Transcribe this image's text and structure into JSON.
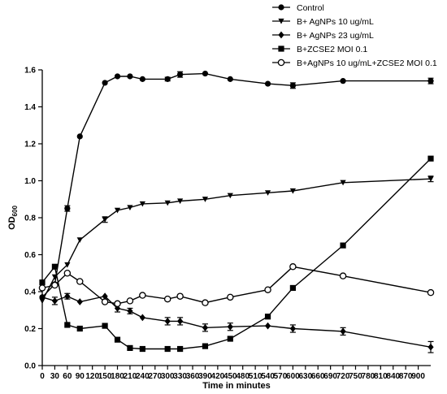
{
  "chart_data": {
    "type": "line",
    "xlabel": "Time in minutes",
    "ylabel": "OD",
    "ylabel_sub": "600",
    "xlim": [
      0,
      930
    ],
    "ylim": [
      0,
      1.6
    ],
    "xticks": [
      "0",
      "30",
      "60",
      "90",
      "120",
      "150",
      "180",
      "210",
      "240",
      "270",
      "300",
      "330",
      "360",
      "390",
      "420",
      "450",
      "480",
      "510",
      "540",
      "570",
      "600",
      "630",
      "660",
      "690",
      "720",
      "750",
      "780",
      "810",
      "840",
      "870",
      "900"
    ],
    "xtick_values": [
      0,
      30,
      60,
      90,
      120,
      150,
      180,
      210,
      240,
      270,
      300,
      330,
      360,
      390,
      420,
      450,
      480,
      510,
      540,
      570,
      600,
      630,
      660,
      690,
      720,
      750,
      780,
      810,
      840,
      870,
      900
    ],
    "yticks": [
      "0.0",
      "0.2",
      "0.4",
      "0.6",
      "0.8",
      "1.0",
      "1.2",
      "1.4",
      "1.6"
    ],
    "ytick_values": [
      0,
      0.2,
      0.4,
      0.6,
      0.8,
      1.0,
      1.2,
      1.4,
      1.6
    ],
    "grid": false,
    "legend_position": "top-right",
    "series": [
      {
        "name": "Control",
        "marker": "circle-filled",
        "x": [
          0,
          30,
          60,
          90,
          150,
          180,
          210,
          240,
          300,
          330,
          390,
          450,
          540,
          600,
          720,
          930
        ],
        "y": [
          0.37,
          0.44,
          0.85,
          1.24,
          1.53,
          1.565,
          1.565,
          1.55,
          1.55,
          1.575,
          1.58,
          1.55,
          1.525,
          1.515,
          1.54,
          1.54
        ],
        "err": [
          0,
          0,
          0.015,
          0,
          0,
          0,
          0,
          0,
          0.01,
          0.015,
          0,
          0,
          0,
          0.015,
          0,
          0.015
        ]
      },
      {
        "name": "B+ AgNPs 10 ug/mL",
        "marker": "triangle-down",
        "x": [
          0,
          30,
          60,
          90,
          150,
          180,
          210,
          240,
          300,
          330,
          390,
          450,
          540,
          600,
          720,
          930
        ],
        "y": [
          0.35,
          0.48,
          0.545,
          0.68,
          0.79,
          0.84,
          0.855,
          0.875,
          0.88,
          0.89,
          0.9,
          0.92,
          0.935,
          0.945,
          0.99,
          1.01
        ],
        "err": [
          0,
          0,
          0,
          0,
          0.015,
          0,
          0,
          0,
          0,
          0,
          0,
          0,
          0,
          0,
          0,
          0.015
        ]
      },
      {
        "name": "B+ AgNPs 23 ug/mL",
        "marker": "diamond",
        "x": [
          0,
          30,
          60,
          90,
          150,
          180,
          210,
          240,
          300,
          330,
          390,
          450,
          540,
          600,
          720,
          930
        ],
        "y": [
          0.37,
          0.35,
          0.375,
          0.345,
          0.375,
          0.31,
          0.295,
          0.26,
          0.24,
          0.24,
          0.205,
          0.21,
          0.215,
          0.2,
          0.185,
          0.1
        ],
        "err": [
          0,
          0.02,
          0.015,
          0,
          0,
          0.02,
          0.015,
          0,
          0.02,
          0.02,
          0.02,
          0.02,
          0,
          0.02,
          0.02,
          0.03
        ]
      },
      {
        "name": "B+ZCSE2 MOI 0.1",
        "marker": "square",
        "x": [
          0,
          30,
          60,
          90,
          150,
          180,
          210,
          240,
          300,
          330,
          390,
          450,
          540,
          600,
          720,
          930
        ],
        "y": [
          0.45,
          0.535,
          0.22,
          0.2,
          0.215,
          0.14,
          0.095,
          0.09,
          0.09,
          0.09,
          0.105,
          0.145,
          0.265,
          0.42,
          0.65,
          1.12
        ],
        "err": [
          0,
          0,
          0,
          0,
          0,
          0,
          0,
          0,
          0,
          0,
          0,
          0,
          0,
          0,
          0,
          0
        ]
      },
      {
        "name": "B+AgNPs 10 ug/mL+ZCSE2 MOI 0.1",
        "marker": "circle-open",
        "x": [
          0,
          30,
          60,
          90,
          150,
          180,
          210,
          240,
          300,
          330,
          390,
          450,
          540,
          600,
          720,
          930
        ],
        "y": [
          0.42,
          0.435,
          0.5,
          0.455,
          0.345,
          0.335,
          0.35,
          0.38,
          0.36,
          0.375,
          0.34,
          0.37,
          0.41,
          0.535,
          0.485,
          0.395
        ],
        "err": [
          0,
          0,
          0,
          0,
          0,
          0,
          0,
          0,
          0,
          0,
          0,
          0,
          0,
          0,
          0,
          0
        ]
      }
    ]
  }
}
